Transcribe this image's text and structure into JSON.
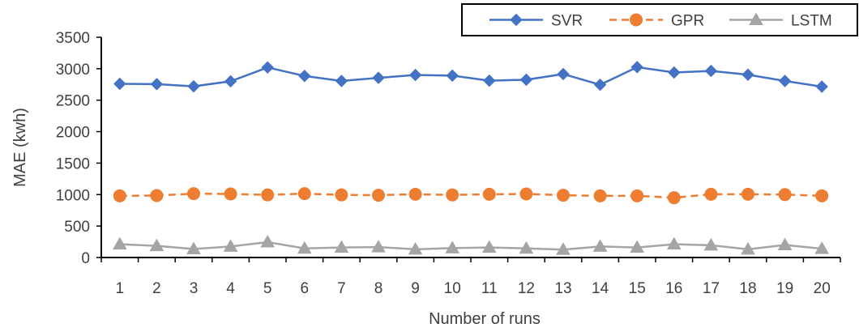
{
  "chart_data": {
    "type": "line",
    "title": "",
    "xlabel": "Number of runs",
    "ylabel": "MAE (kwh)",
    "ylim": [
      0,
      3500
    ],
    "yticks": [
      0,
      500,
      1000,
      1500,
      2000,
      2500,
      3000,
      3500
    ],
    "x": [
      "1",
      "2",
      "3",
      "4",
      "5",
      "6",
      "7",
      "8",
      "9",
      "10",
      "11",
      "12",
      "13",
      "14",
      "15",
      "16",
      "17",
      "18",
      "19",
      "20"
    ],
    "grid": false,
    "legend_position": "top-right",
    "series": [
      {
        "name": "SVR",
        "color": "#4472C4",
        "line_style": "solid",
        "marker": "diamond",
        "values": [
          2760,
          2755,
          2720,
          2800,
          3020,
          2885,
          2805,
          2855,
          2900,
          2890,
          2810,
          2825,
          2915,
          2745,
          3025,
          2940,
          2965,
          2905,
          2805,
          2715
        ]
      },
      {
        "name": "GPR",
        "color": "#ED7D31",
        "line_style": "dashed",
        "marker": "circle",
        "values": [
          980,
          985,
          1015,
          1010,
          995,
          1015,
          995,
          990,
          1005,
          995,
          1005,
          1010,
          990,
          980,
          980,
          950,
          1005,
          1005,
          1000,
          980
        ]
      },
      {
        "name": "LSTM",
        "color": "#A5A5A5",
        "line_style": "solid",
        "marker": "triangle",
        "values": [
          210,
          185,
          135,
          175,
          245,
          145,
          160,
          165,
          130,
          150,
          160,
          145,
          125,
          175,
          160,
          210,
          195,
          130,
          200,
          140
        ]
      }
    ]
  }
}
